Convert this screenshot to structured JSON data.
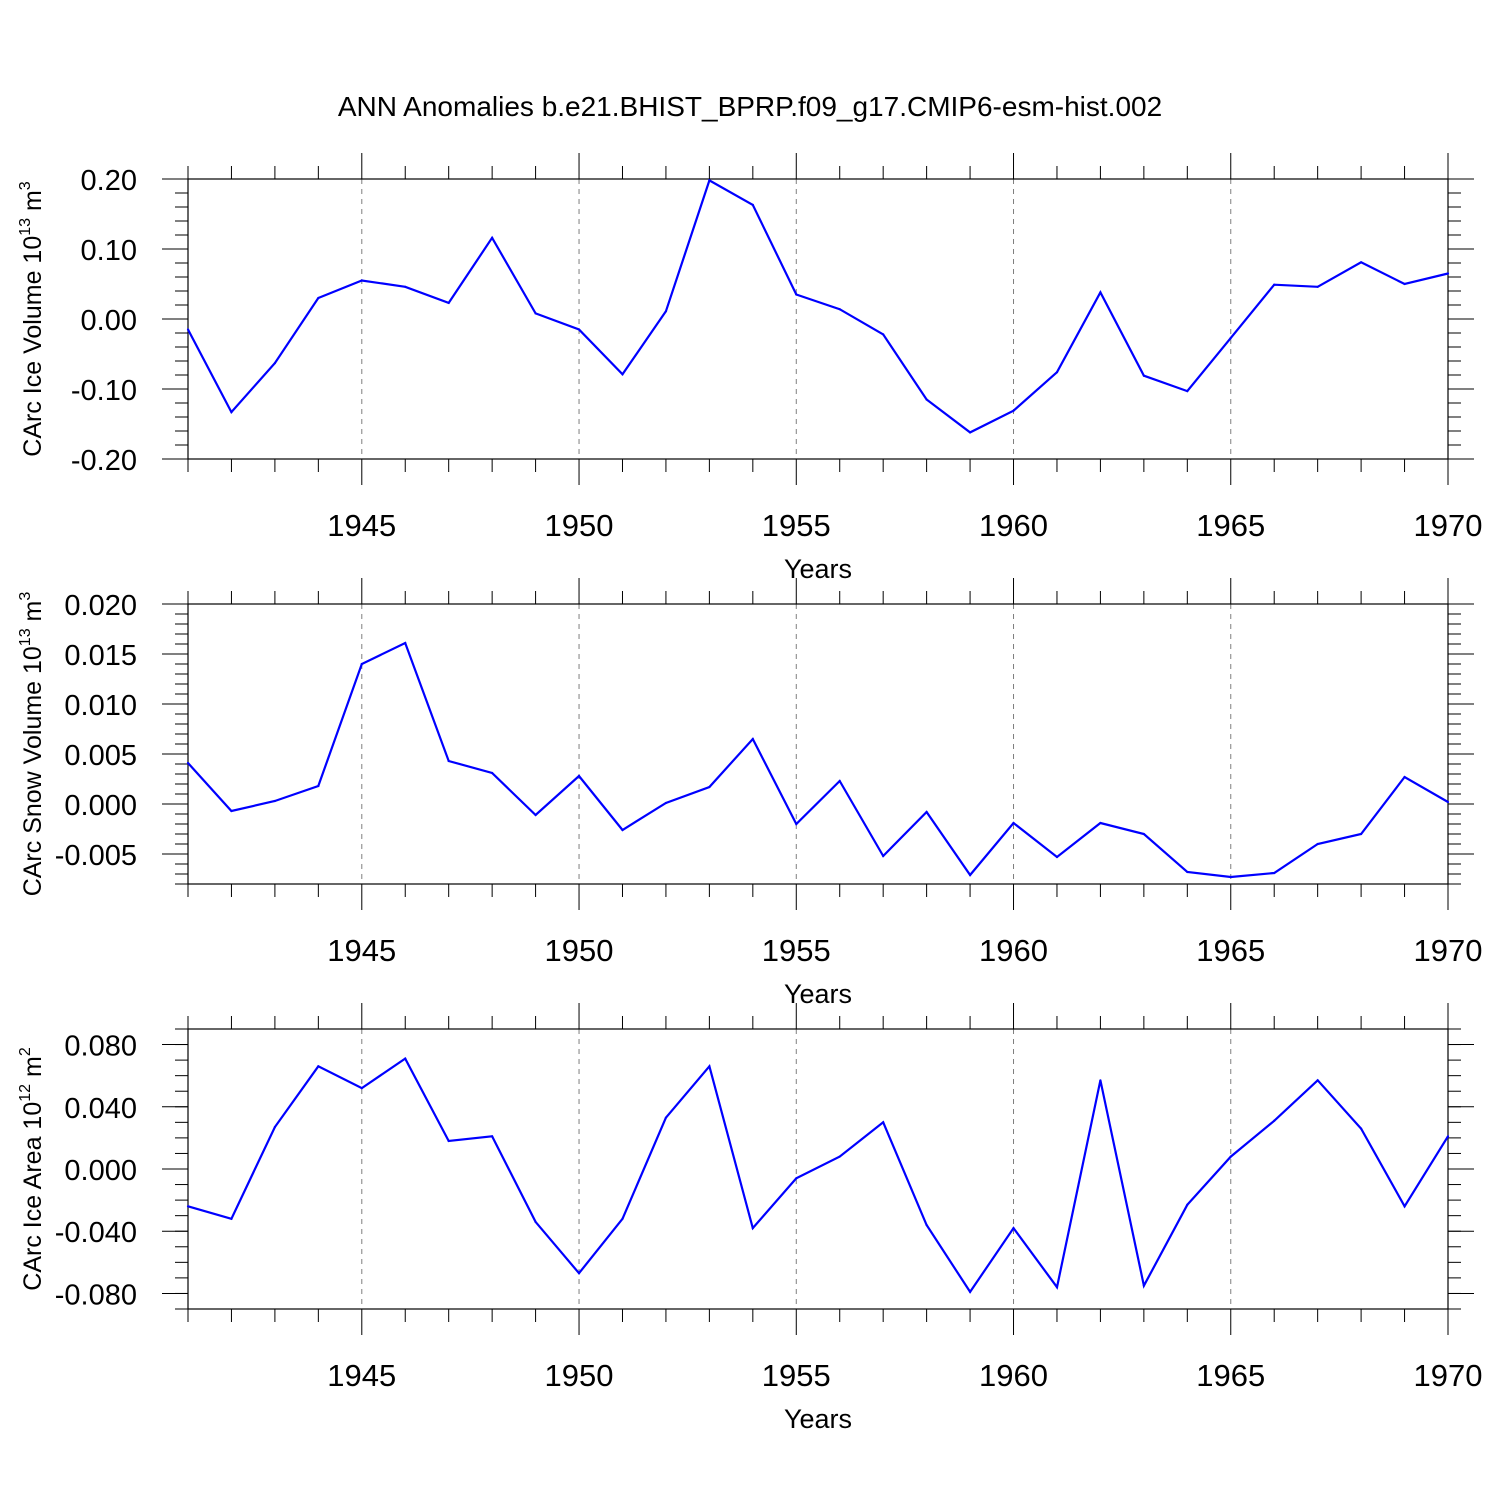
{
  "chart_data": {
    "title": "ANN Anomalies b.e21.BHIST_BPRP.f09_g17.CMIP6-esm-hist.002",
    "colors": {
      "line": "#0000ff",
      "axis": "#000000",
      "grid": "#7f7f7f"
    },
    "years": [
      1941,
      1942,
      1943,
      1944,
      1945,
      1946,
      1947,
      1948,
      1949,
      1950,
      1951,
      1952,
      1953,
      1954,
      1955,
      1956,
      1957,
      1958,
      1959,
      1960,
      1961,
      1962,
      1963,
      1964,
      1965,
      1966,
      1967,
      1968,
      1969,
      1970
    ],
    "panels": [
      {
        "type": "line",
        "ylabel_main": "CArc Ice Volume 10",
        "ylabel_exp": "13",
        "ylabel_unit": " m",
        "ylabel_unit_exp": "3",
        "xlabel": "Years",
        "xlim": [
          1941,
          1970
        ],
        "ylim": [
          -0.2,
          0.2
        ],
        "yticks": [
          0.2,
          0.1,
          0.0,
          -0.1,
          -0.2
        ],
        "ytick_labels": [
          "0.20",
          "0.10",
          "0.00",
          "-0.10",
          "-0.20"
        ],
        "yminor_step": 0.02,
        "xticks": [
          1945,
          1950,
          1955,
          1960,
          1965,
          1970
        ],
        "xtick_labels": [
          "1945",
          "1950",
          "1955",
          "1960",
          "1965",
          "1970"
        ],
        "values": [
          -0.015,
          -0.133,
          -0.063,
          0.03,
          0.055,
          0.046,
          0.023,
          0.116,
          0.008,
          -0.015,
          -0.079,
          0.011,
          0.198,
          0.163,
          0.035,
          0.014,
          -0.022,
          -0.115,
          -0.162,
          -0.131,
          -0.076,
          0.038,
          -0.081,
          -0.103,
          -0.027,
          0.049,
          0.046,
          0.081,
          0.05,
          0.065
        ]
      },
      {
        "type": "line",
        "ylabel_main": "CArc Snow Volume 10",
        "ylabel_exp": "13",
        "ylabel_unit": " m",
        "ylabel_unit_exp": "3",
        "xlabel": "Years",
        "xlim": [
          1941,
          1970
        ],
        "ylim": [
          -0.008,
          0.02
        ],
        "yticks": [
          0.02,
          0.015,
          0.01,
          0.005,
          0.0,
          -0.005
        ],
        "ytick_labels": [
          "0.020",
          "0.015",
          "0.010",
          "0.005",
          "0.000",
          "-0.005"
        ],
        "yminor_step": 0.001,
        "xticks": [
          1945,
          1950,
          1955,
          1960,
          1965,
          1970
        ],
        "xtick_labels": [
          "1945",
          "1950",
          "1955",
          "1960",
          "1965",
          "1970"
        ],
        "values": [
          0.0041,
          -0.0007,
          0.0003,
          0.0018,
          0.014,
          0.0161,
          0.0043,
          0.0031,
          -0.0011,
          0.0028,
          -0.0026,
          0.0001,
          0.0017,
          0.0065,
          -0.002,
          0.0023,
          -0.0052,
          -0.0008,
          -0.0071,
          -0.0019,
          -0.0053,
          -0.0019,
          -0.003,
          -0.0068,
          -0.0073,
          -0.0069,
          -0.004,
          -0.003,
          0.0027,
          0.0002
        ]
      },
      {
        "type": "line",
        "ylabel_main": "CArc Ice Area 10",
        "ylabel_exp": "12",
        "ylabel_unit": " m",
        "ylabel_unit_exp": "2",
        "xlabel": "Years",
        "xlim": [
          1941,
          1970
        ],
        "ylim": [
          -0.09,
          0.09
        ],
        "yticks": [
          0.08,
          0.04,
          0.0,
          -0.04,
          -0.08
        ],
        "ytick_labels": [
          "0.080",
          "0.040",
          "0.000",
          "-0.040",
          "-0.080"
        ],
        "yminor_step": 0.01,
        "xticks": [
          1945,
          1950,
          1955,
          1960,
          1965,
          1970
        ],
        "xtick_labels": [
          "1945",
          "1950",
          "1955",
          "1960",
          "1965",
          "1970"
        ],
        "values": [
          -0.024,
          -0.032,
          0.027,
          0.066,
          0.052,
          0.071,
          0.018,
          0.021,
          -0.034,
          -0.067,
          -0.032,
          0.033,
          0.066,
          -0.038,
          -0.006,
          0.008,
          0.03,
          -0.036,
          -0.079,
          -0.038,
          -0.076,
          0.057,
          -0.075,
          -0.023,
          0.008,
          0.031,
          0.057,
          0.026,
          -0.024,
          0.021
        ]
      }
    ]
  }
}
